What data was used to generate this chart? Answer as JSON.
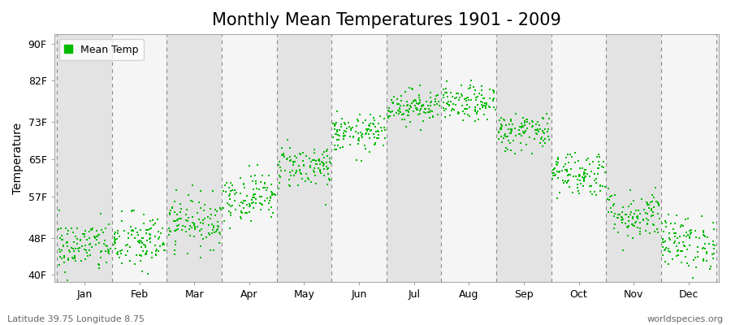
{
  "title": "Monthly Mean Temperatures 1901 - 2009",
  "ylabel": "Temperature",
  "xlabel_months": [
    "Jan",
    "Feb",
    "Mar",
    "Apr",
    "May",
    "Jun",
    "Jul",
    "Aug",
    "Sep",
    "Oct",
    "Nov",
    "Dec"
  ],
  "ytick_labels": [
    "40F",
    "48F",
    "57F",
    "65F",
    "73F",
    "82F",
    "90F"
  ],
  "ytick_values": [
    40,
    48,
    57,
    65,
    73,
    82,
    90
  ],
  "ylim": [
    38.5,
    92
  ],
  "xlim": [
    -0.55,
    11.55
  ],
  "legend_label": "Mean Temp",
  "marker_color": "#00bb00",
  "marker_size": 4,
  "plot_bg_color": "#ebebeb",
  "band_color_light": "#f5f5f5",
  "band_color_dark": "#e3e3e3",
  "fig_bg_color": "#ffffff",
  "grid_color": "#888888",
  "bottom_left_text": "Latitude 39.75 Longitude 8.75",
  "bottom_right_text": "worldspecies.org",
  "title_fontsize": 15,
  "axis_fontsize": 10,
  "tick_fontsize": 9,
  "mean_temps_F": [
    46.2,
    47.0,
    51.5,
    57.0,
    63.5,
    70.5,
    76.5,
    77.0,
    71.0,
    62.0,
    53.0,
    47.0
  ],
  "std_devs_F": [
    2.8,
    3.2,
    2.8,
    2.6,
    2.4,
    2.0,
    1.8,
    1.9,
    2.1,
    2.5,
    2.7,
    2.9
  ],
  "n_years": 109,
  "seed": 42
}
